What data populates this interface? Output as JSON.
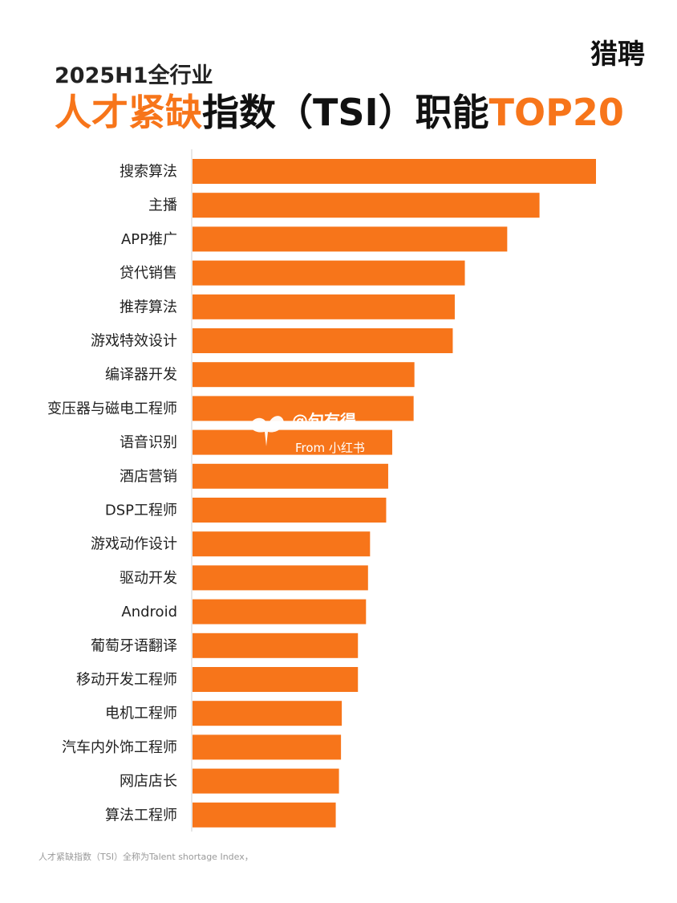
{
  "brand": "猎聘",
  "subtitle": "2025H1全行业",
  "title": {
    "part_orange_1": "人才紧缺",
    "part_dark": "指数（TSI）职能",
    "part_orange_2": "TOP20"
  },
  "colors": {
    "bar": "#f7751a",
    "accent": "#f7751a",
    "text": "#222222"
  },
  "watermark": {
    "handle": "@句有得",
    "from": "From 小红书",
    "icon": "xiaohongshu-bird-icon"
  },
  "footnote": {
    "line1": "人才紧缺指数（TSI）全称为Talent shortage Index，",
    "line2": ""
  },
  "chart_data": {
    "type": "bar",
    "orientation": "horizontal",
    "categories": [
      "搜索算法",
      "主播",
      "APP推广",
      "贷代销售",
      "推荐算法",
      "游戏特效设计",
      "编译器开发",
      "变压器与磁电工程师",
      "语音识别",
      "酒店营销",
      "DSP工程师",
      "游戏动作设计",
      "驱动开发",
      "Android",
      "葡萄牙语翻译",
      "移动开发工程师",
      "电机工程师",
      "汽车内外饰工程师",
      "网店店长",
      "算法工程师"
    ],
    "values": [
      100,
      86,
      78,
      67.5,
      65,
      64.5,
      55,
      54.8,
      49.5,
      48.5,
      48,
      44,
      43.5,
      43,
      41,
      41,
      37,
      36.8,
      36.3,
      35.5
    ],
    "title": "人才紧缺指数（TSI）职能TOP20",
    "xlabel": "",
    "ylabel": "",
    "axis_ticks_visible": false,
    "grid": false,
    "legend": "none",
    "note": ""
  }
}
